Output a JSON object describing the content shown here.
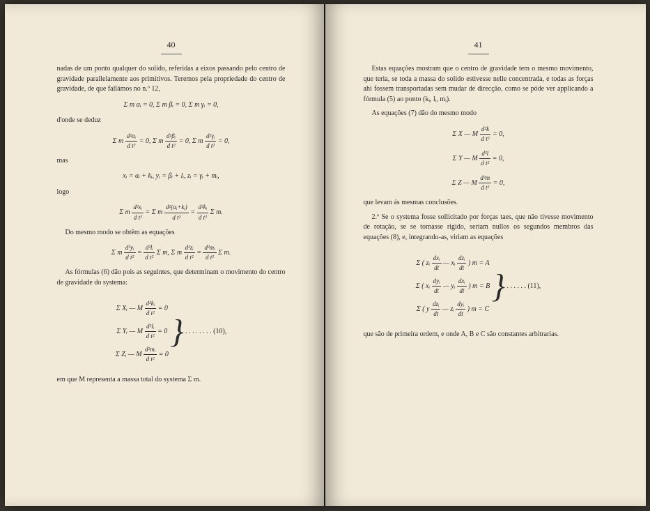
{
  "left": {
    "pagenum": "40",
    "p1": "nadas de um ponto qualquer do solido, referidas a eixos passando pelo centro de gravidade parallelamente aos primitivos. Teremos pela propriedade do centro de gravidade, de que fallámos no n.º 12,",
    "f1": "Σ m αᵢ = 0,   Σ m βᵢ = 0,   Σ m γᵢ = 0,",
    "p2": "d'onde se deduz",
    "f2a": "Σ m",
    "f2b": "= 0,   Σ m",
    "f2c": "= 0,   Σ m",
    "f2d": "= 0,",
    "p3": "mas",
    "f3": "xᵢ = αᵢ + kᵢ,   yᵢ = βᵢ + lᵢ,   zᵢ = γᵢ + mᵢ,",
    "p4": "logo",
    "f4a": "Σ m",
    "f4b": "= Σ m",
    "f4c": "=",
    "f4d": "Σ m.",
    "p5": "Do mesmo modo se obtêm as equações",
    "f5a": "Σ m",
    "f5b": "=",
    "f5c": "Σ m,   Σ m",
    "f5d": "=",
    "f5e": "Σ m.",
    "p6": "As fórmulas (6) dão pois as seguintes, que determinam o movimento do centro de gravidade do systema:",
    "eq10a": "Σ Xᵢ — M",
    "eq10b": "= 0",
    "eq10c": "Σ Yᵢ — M",
    "eq10d": "= 0",
    "eq10e": "Σ Zᵢ — M",
    "eq10f": "= 0",
    "eq10dots": " . . . . . . . .  (10),",
    "p7": "em que M representa a massa total do systema Σ m."
  },
  "right": {
    "pagenum": "41",
    "p1": "Estas equações mostram que o centro de gravidade tem o mesmo movimento, que teria, se toda a massa do solido estivesse nelle concentrada, e todas as forças ahi fossem transportadas sem mudar de direcção, como se póde ver applicando a fórmula (5) ao ponto (kᵢ, lᵢ, mᵢ).",
    "p2": "As equações (7) dão do mesmo modo",
    "f1a": "Σ X — M",
    "f1b": "= 0,",
    "f2a": "Σ Y — M",
    "f2b": "= 0,",
    "f3a": "Σ Z — M",
    "f3b": "= 0,",
    "p3": "que levam ás mesmas conclusões.",
    "p4": "2.º Se o systema fosse sollicitado por forças taes, que não tivesse movimento de rotação, se se tornasse rigido, seriam nullos os segundos membros das equações (8), e, integrando-as, viriam as equações",
    "eq11a": "Σ ( zᵢ",
    "eq11b": "— xᵢ",
    "eq11c": ") m = A",
    "eq11d": "Σ ( xᵢ",
    "eq11e": "— yᵢ",
    "eq11f": ") m = B",
    "eq11g": "Σ ( y",
    "eq11h": "— zᵢ",
    "eq11i": ") m = C",
    "eq11dots": " . . . . . .  (11),",
    "p5": "que são de primeira ordem, e onde A, B e C são constantes arbitrarias."
  }
}
